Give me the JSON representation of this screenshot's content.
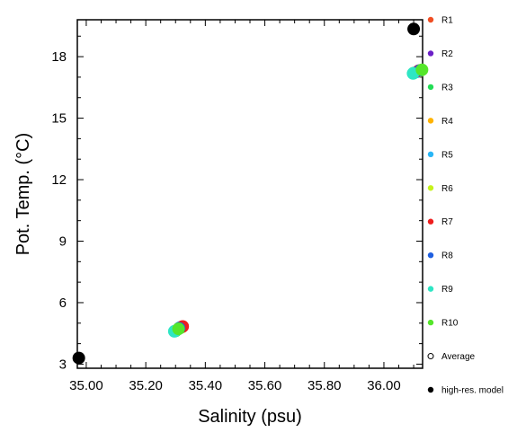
{
  "chart_data": {
    "type": "scatter",
    "title": "",
    "xlabel": "Salinity (psu)",
    "ylabel": "Pot. Temp. (°C)",
    "xlim": [
      34.97,
      36.13
    ],
    "ylim": [
      2.8,
      19.8
    ],
    "x_ticks": [
      35.0,
      35.2,
      35.4,
      35.6,
      35.8,
      36.0
    ],
    "x_tick_labels": [
      "35.00",
      "35.20",
      "35.40",
      "35.60",
      "35.80",
      "36.00"
    ],
    "y_ticks": [
      3,
      6,
      9,
      12,
      15,
      18
    ],
    "y_tick_labels": [
      "3",
      "6",
      "9",
      "12",
      "15",
      "18"
    ],
    "grid": false,
    "legend_position": "right",
    "series": [
      {
        "name": "R1",
        "color": "#f04e23",
        "marker": "filled-circle",
        "x": [
          35.322,
          36.118
        ],
        "y": [
          4.82,
          17.32
        ]
      },
      {
        "name": "R2",
        "color": "#6b1fc7",
        "marker": "filled-circle",
        "x": [
          35.318,
          36.116
        ],
        "y": [
          4.8,
          17.3
        ]
      },
      {
        "name": "R3",
        "color": "#22dd55",
        "marker": "filled-circle",
        "x": [
          35.3,
          36.1
        ],
        "y": [
          4.62,
          17.2
        ]
      },
      {
        "name": "R4",
        "color": "#ffb300",
        "marker": "filled-circle",
        "x": [
          35.32,
          36.115
        ],
        "y": [
          4.81,
          17.28
        ]
      },
      {
        "name": "R5",
        "color": "#29b6f6",
        "marker": "filled-circle",
        "x": [
          35.315,
          36.112
        ],
        "y": [
          4.78,
          17.26
        ]
      },
      {
        "name": "R6",
        "color": "#c6f21c",
        "marker": "filled-circle",
        "x": [
          35.319,
          36.12
        ],
        "y": [
          4.79,
          17.3
        ]
      },
      {
        "name": "R7",
        "color": "#ee1d1d",
        "marker": "filled-circle",
        "x": [
          35.324,
          36.118
        ],
        "y": [
          4.84,
          17.31
        ]
      },
      {
        "name": "R8",
        "color": "#1f5fe0",
        "marker": "filled-circle",
        "x": [
          35.312,
          36.122
        ],
        "y": [
          4.75,
          17.33
        ]
      },
      {
        "name": "R9",
        "color": "#2ee6c4",
        "marker": "filled-circle",
        "x": [
          35.296,
          36.098
        ],
        "y": [
          4.6,
          17.18
        ]
      },
      {
        "name": "R10",
        "color": "#55e62a",
        "marker": "filled-circle",
        "x": [
          35.31,
          36.128
        ],
        "y": [
          4.72,
          17.36
        ]
      },
      {
        "name": "Average",
        "color": "#000000",
        "marker": "open-circle",
        "x": [],
        "y": []
      },
      {
        "name": "high-res. model",
        "color": "#000000",
        "marker": "filled-circle",
        "x": [
          34.975,
          36.1
        ],
        "y": [
          3.3,
          19.35
        ]
      }
    ]
  }
}
